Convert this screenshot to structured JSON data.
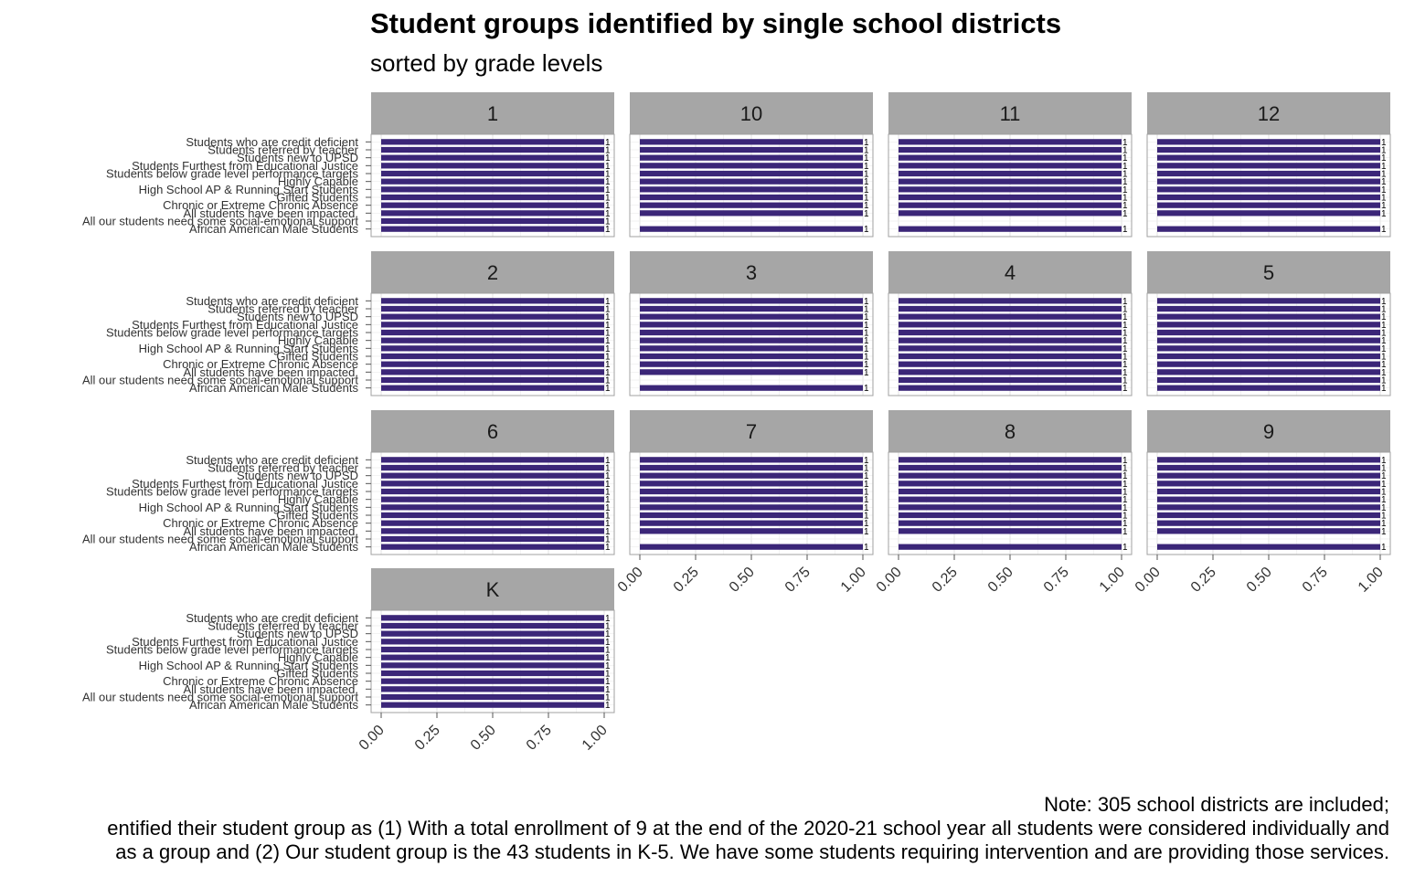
{
  "chart_data": {
    "type": "bar",
    "orientation": "horizontal",
    "faceted": true,
    "title": "Student groups identified by single school districts",
    "subtitle": "sorted by grade levels",
    "xlim": [
      0,
      1
    ],
    "x_ticks": [
      "0.00",
      "0.25",
      "0.50",
      "0.75",
      "1.00"
    ],
    "bar_color": "#3b2678",
    "strip_color": "#a6a6a6",
    "categories": [
      "Students who are credit deficient",
      "Students referred by teacher",
      "Students new to UPSD",
      "Students Furthest from Educational Justice",
      "Students below grade level performance targets",
      "Highly Capable",
      "High School AP & Running Start Students",
      "Gifted Students",
      "Chronic or Extreme Chronic Absence",
      "All students have been impacted.",
      "All our students need some social-emotional support",
      "African American Male Students"
    ],
    "panels": [
      {
        "label": "1",
        "values": [
          1,
          1,
          1,
          1,
          1,
          1,
          1,
          1,
          1,
          1,
          1,
          1
        ]
      },
      {
        "label": "10",
        "values": [
          1,
          1,
          1,
          1,
          1,
          1,
          1,
          1,
          1,
          1,
          null,
          1
        ]
      },
      {
        "label": "11",
        "values": [
          1,
          1,
          1,
          1,
          1,
          1,
          1,
          1,
          1,
          1,
          null,
          1
        ]
      },
      {
        "label": "12",
        "values": [
          1,
          1,
          1,
          1,
          1,
          1,
          1,
          1,
          1,
          1,
          null,
          1
        ]
      },
      {
        "label": "2",
        "values": [
          1,
          1,
          1,
          1,
          1,
          1,
          1,
          1,
          1,
          1,
          1,
          1
        ]
      },
      {
        "label": "3",
        "values": [
          1,
          1,
          1,
          1,
          1,
          1,
          1,
          1,
          1,
          1,
          null,
          1
        ]
      },
      {
        "label": "4",
        "values": [
          1,
          1,
          1,
          1,
          1,
          1,
          1,
          1,
          1,
          1,
          1,
          1
        ]
      },
      {
        "label": "5",
        "values": [
          1,
          1,
          1,
          1,
          1,
          1,
          1,
          1,
          1,
          1,
          1,
          1
        ]
      },
      {
        "label": "6",
        "values": [
          1,
          1,
          1,
          1,
          1,
          1,
          1,
          1,
          1,
          1,
          1,
          1
        ]
      },
      {
        "label": "7",
        "values": [
          1,
          1,
          1,
          1,
          1,
          1,
          1,
          1,
          1,
          1,
          null,
          1
        ]
      },
      {
        "label": "8",
        "values": [
          1,
          1,
          1,
          1,
          1,
          1,
          1,
          1,
          1,
          1,
          null,
          1
        ]
      },
      {
        "label": "9",
        "values": [
          1,
          1,
          1,
          1,
          1,
          1,
          1,
          1,
          1,
          1,
          null,
          1
        ]
      },
      {
        "label": "K",
        "values": [
          1,
          1,
          1,
          1,
          1,
          1,
          1,
          1,
          1,
          1,
          1,
          1
        ]
      }
    ],
    "note_lines": [
      "Note: 305 school districts are included;",
      "entified their student group as (1) With a total enrollment of 9 at the end of the 2020-21 school year all students were considered individually and",
      "as a group and (2) Our student group is the 43 students in K-5. We have some students requiring intervention and are providing those services."
    ]
  }
}
